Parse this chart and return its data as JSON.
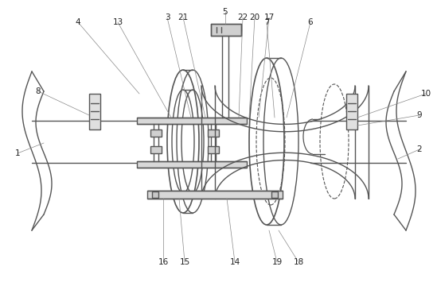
{
  "bg_color": "#ffffff",
  "line_color": "#555555",
  "fig_width": 5.49,
  "fig_height": 3.55,
  "dpi": 100
}
